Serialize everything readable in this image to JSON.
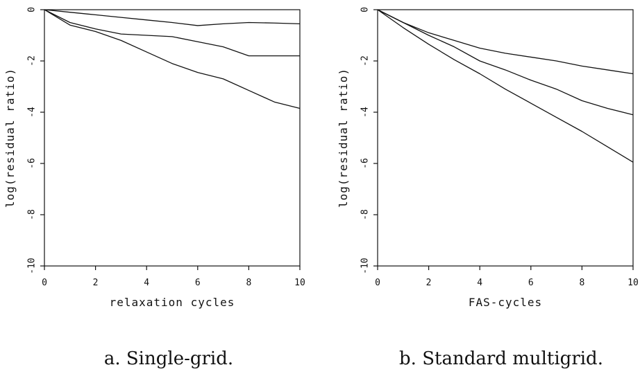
{
  "chart_data": [
    {
      "type": "line",
      "caption": "a. Single-grid.",
      "xlabel": "relaxation cycles",
      "ylabel": "log(residual ratio)",
      "xlim": [
        0,
        10
      ],
      "ylim": [
        -10,
        0
      ],
      "xticks": [
        0,
        2,
        4,
        6,
        8,
        10
      ],
      "yticks": [
        0,
        -2,
        -4,
        -6,
        -8,
        -10
      ],
      "grid": false,
      "x": [
        0,
        1,
        2,
        3,
        4,
        5,
        6,
        7,
        8,
        9,
        10
      ],
      "series": [
        {
          "values": [
            0,
            -0.1,
            -0.2,
            -0.3,
            -0.4,
            -0.5,
            -0.62,
            -0.55,
            -0.5,
            -0.52,
            -0.55
          ]
        },
        {
          "values": [
            0,
            -0.5,
            -0.75,
            -0.95,
            -1.0,
            -1.05,
            -1.25,
            -1.45,
            -1.8,
            -1.8,
            -1.8
          ]
        },
        {
          "values": [
            0,
            -0.6,
            -0.85,
            -1.2,
            -1.65,
            -2.1,
            -2.45,
            -2.7,
            -3.15,
            -3.6,
            -3.85
          ]
        }
      ]
    },
    {
      "type": "line",
      "caption": "b. Standard multigrid.",
      "xlabel": "FAS-cycles",
      "ylabel": "log(residual ratio)",
      "xlim": [
        0,
        10
      ],
      "ylim": [
        -10,
        0
      ],
      "xticks": [
        0,
        2,
        4,
        6,
        8,
        10
      ],
      "yticks": [
        0,
        -2,
        -4,
        -6,
        -8,
        -10
      ],
      "grid": false,
      "x": [
        0,
        1,
        2,
        3,
        4,
        5,
        6,
        7,
        8,
        9,
        10
      ],
      "series": [
        {
          "values": [
            0,
            -0.5,
            -0.9,
            -1.2,
            -1.5,
            -1.7,
            -1.85,
            -2.0,
            -2.2,
            -2.35,
            -2.5
          ]
        },
        {
          "values": [
            0,
            -0.5,
            -1.0,
            -1.45,
            -2.0,
            -2.35,
            -2.75,
            -3.1,
            -3.55,
            -3.85,
            -4.1
          ]
        },
        {
          "values": [
            0,
            -0.7,
            -1.35,
            -1.95,
            -2.5,
            -3.1,
            -3.65,
            -4.2,
            -4.75,
            -5.35,
            -5.95
          ]
        }
      ]
    }
  ]
}
